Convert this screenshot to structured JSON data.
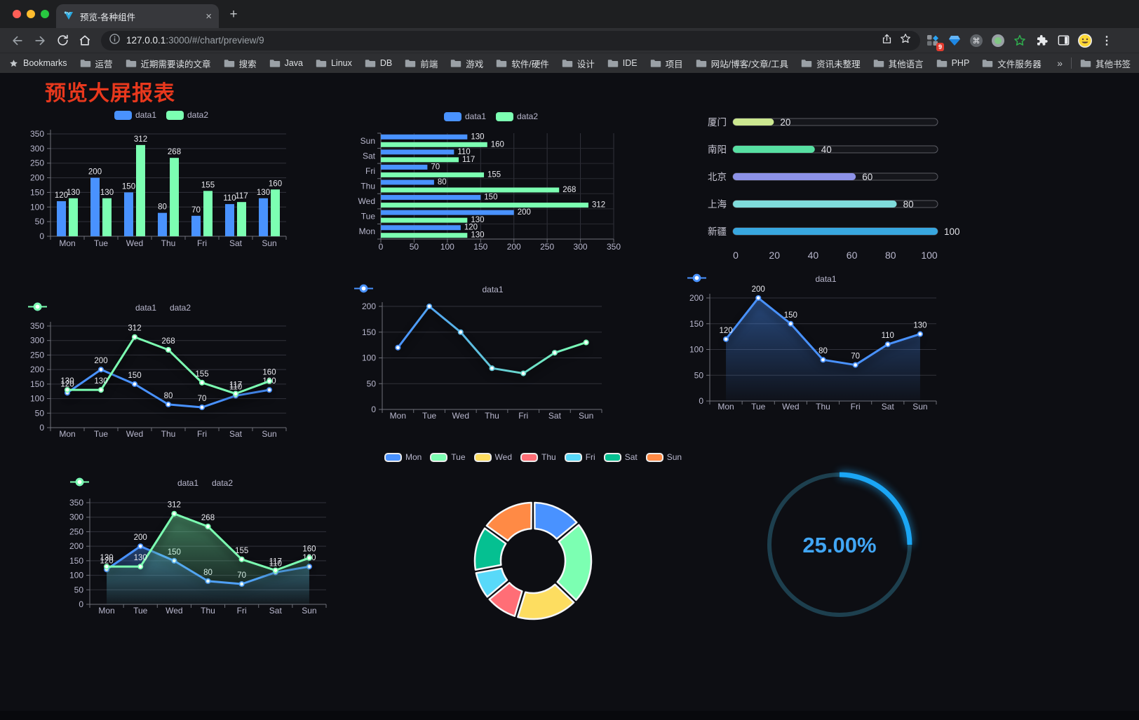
{
  "browser": {
    "tab_title": "预览-各种组件",
    "close_glyph": "×",
    "newtab_glyph": "+",
    "menu_glyph": "⋮",
    "url_host": "127.0.0.1",
    "url_rest": ":3000/#/chart/preview/9",
    "extension_badge": "9",
    "bookmarks_label": "Bookmarks",
    "bookmarks": [
      "运营",
      "近期需要读的文章",
      "搜索",
      "Java",
      "Linux",
      "DB",
      "前端",
      "游戏",
      "软件/硬件",
      "设计",
      "IDE",
      "项目",
      "网站/博客/文章/工具",
      "资讯未整理",
      "其他语言",
      "PHP",
      "文件服务器"
    ],
    "bookmarks_overflow": "»",
    "other_bookmarks": "其他书签"
  },
  "page": {
    "title": "预览大屏报表",
    "title_color": "#e8381d",
    "background": "#0d0e13"
  },
  "chart_data": [
    {
      "id": "bar-vertical",
      "type": "bar",
      "categories": [
        "Mon",
        "Tue",
        "Wed",
        "Thu",
        "Fri",
        "Sat",
        "Sun"
      ],
      "series": [
        {
          "name": "data1",
          "color": "#4992ff",
          "values": [
            120,
            200,
            150,
            80,
            70,
            110,
            130
          ]
        },
        {
          "name": "data2",
          "color": "#7cffb2",
          "values": [
            130,
            130,
            312,
            268,
            155,
            117,
            160
          ]
        }
      ],
      "ylim": [
        0,
        350
      ],
      "yticks": [
        0,
        50,
        100,
        150,
        200,
        250,
        300,
        350
      ],
      "legend": {
        "position": "top",
        "icon": "roundRect"
      },
      "value_labels": true,
      "grid": true
    },
    {
      "id": "bar-horizontal",
      "type": "hbar",
      "categories_top_to_bottom": [
        "Sun",
        "Sat",
        "Fri",
        "Thu",
        "Wed",
        "Tue",
        "Mon"
      ],
      "series": [
        {
          "name": "data1",
          "color": "#4992ff",
          "values_top_to_bottom": [
            130,
            110,
            70,
            80,
            150,
            200,
            120
          ]
        },
        {
          "name": "data2",
          "color": "#7cffb2",
          "values_top_to_bottom": [
            160,
            117,
            155,
            268,
            312,
            130,
            130
          ]
        }
      ],
      "xlim": [
        0,
        350
      ],
      "xticks": [
        0,
        50,
        100,
        150,
        200,
        250,
        300,
        350
      ],
      "legend": {
        "position": "top",
        "icon": "roundRect"
      },
      "value_labels": true,
      "grid": true
    },
    {
      "id": "city-progress",
      "type": "progress",
      "rows": [
        {
          "label": "厦门",
          "value": 20,
          "color": "#cbe790"
        },
        {
          "label": "南阳",
          "value": 40,
          "color": "#57dfa2"
        },
        {
          "label": "北京",
          "value": 60,
          "color": "#8d92e8"
        },
        {
          "label": "上海",
          "value": 80,
          "color": "#7fdbdb"
        },
        {
          "label": "新疆",
          "value": 100,
          "color": "#38a7e0"
        }
      ],
      "xlim": [
        0,
        100
      ],
      "xticks": [
        0,
        20,
        40,
        60,
        80,
        100
      ]
    },
    {
      "id": "line-two-series",
      "type": "line",
      "categories": [
        "Mon",
        "Tue",
        "Wed",
        "Thu",
        "Fri",
        "Sat",
        "Sun"
      ],
      "series": [
        {
          "name": "data1",
          "color": "#4992ff",
          "values": [
            120,
            200,
            150,
            80,
            70,
            110,
            130
          ]
        },
        {
          "name": "data2",
          "color": "#7cffb2",
          "values": [
            130,
            130,
            312,
            268,
            155,
            117,
            160
          ]
        }
      ],
      "ylim": [
        0,
        350
      ],
      "yticks": [
        0,
        50,
        100,
        150,
        200,
        250,
        300,
        350
      ],
      "legend": {
        "position": "top",
        "icon": "circle-line"
      },
      "value_labels": true,
      "grid": true
    },
    {
      "id": "line-gradient",
      "type": "line",
      "categories": [
        "Mon",
        "Tue",
        "Wed",
        "Thu",
        "Fri",
        "Sat",
        "Sun"
      ],
      "series": [
        {
          "name": "data1",
          "gradient": [
            "#4992ff",
            "#7cffb2"
          ],
          "values": [
            120,
            200,
            150,
            80,
            70,
            110,
            130
          ]
        }
      ],
      "ylim": [
        0,
        200
      ],
      "yticks": [
        0,
        50,
        100,
        150,
        200
      ],
      "legend": {
        "position": "top",
        "icon": "circle-line"
      },
      "value_labels": false,
      "grid": true
    },
    {
      "id": "area-blue",
      "type": "line",
      "categories": [
        "Mon",
        "Tue",
        "Wed",
        "Thu",
        "Fri",
        "Sat",
        "Sun"
      ],
      "series": [
        {
          "name": "data1",
          "color": "#4992ff",
          "area": true,
          "values": [
            120,
            200,
            150,
            80,
            70,
            110,
            130
          ]
        }
      ],
      "ylim": [
        0,
        200
      ],
      "yticks": [
        0,
        50,
        100,
        150,
        200
      ],
      "legend": {
        "position": "top",
        "icon": "circle-line"
      },
      "value_labels": true,
      "grid": true
    },
    {
      "id": "area-two-series",
      "type": "line",
      "categories": [
        "Mon",
        "Tue",
        "Wed",
        "Thu",
        "Fri",
        "Sat",
        "Sun"
      ],
      "series": [
        {
          "name": "data1",
          "color": "#4992ff",
          "area": true,
          "values": [
            120,
            200,
            150,
            80,
            70,
            110,
            130
          ]
        },
        {
          "name": "data2",
          "color": "#7cffb2",
          "area": true,
          "values": [
            130,
            130,
            312,
            268,
            155,
            117,
            160
          ]
        }
      ],
      "ylim": [
        0,
        350
      ],
      "yticks": [
        0,
        50,
        100,
        150,
        200,
        250,
        300,
        350
      ],
      "legend": {
        "position": "top",
        "icon": "circle-line"
      },
      "value_labels": true,
      "grid": true
    },
    {
      "id": "weekday-donut",
      "type": "pie",
      "donut": true,
      "categories": [
        "Mon",
        "Tue",
        "Wed",
        "Thu",
        "Fri",
        "Sat",
        "Sun"
      ],
      "values": [
        120,
        200,
        150,
        80,
        70,
        110,
        130
      ],
      "colors": [
        "#4992ff",
        "#7cffb2",
        "#fddd60",
        "#ff6e76",
        "#58d9f9",
        "#05c091",
        "#ff8a45"
      ],
      "legend": {
        "position": "top",
        "icon": "roundRect-bordered"
      }
    },
    {
      "id": "percent-gauge",
      "type": "gauge",
      "percent": 25,
      "value_label": "25.00%",
      "arc_color": "#1ba6f5",
      "track_color": "#1d3f4e",
      "text_color": "#41a6f5"
    }
  ]
}
